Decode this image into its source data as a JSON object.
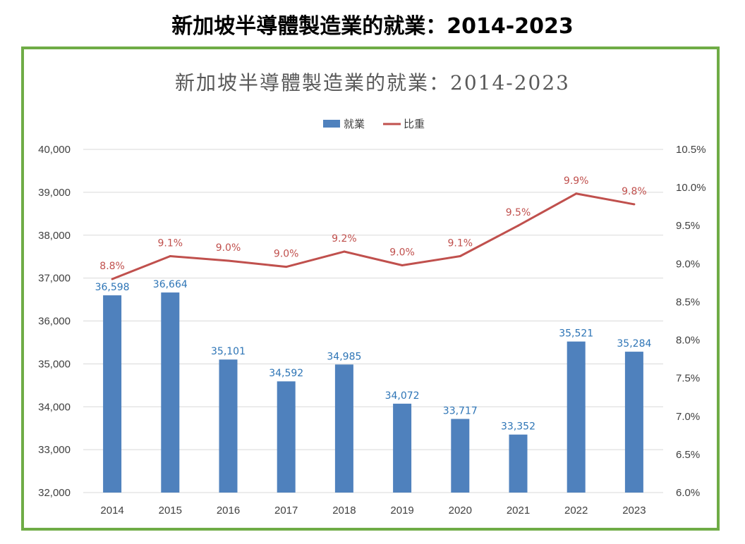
{
  "page": {
    "title": "新加坡半導體製造業的就業：2014-2023"
  },
  "colors": {
    "bar": "#4f81bd",
    "line": "#c0504d",
    "bar_label": "#2e75b6",
    "frame": "#6fac46",
    "grid": "#d9d9d9"
  },
  "chart_data": {
    "type": "bar",
    "title": "新加坡半導體製造業的就業：2014-2023",
    "categories": [
      "2014",
      "2015",
      "2016",
      "2017",
      "2018",
      "2019",
      "2020",
      "2021",
      "2022",
      "2023"
    ],
    "series": [
      {
        "name": "就業",
        "type": "bar",
        "axis": "left",
        "values": [
          36598,
          36664,
          35101,
          34592,
          34985,
          34072,
          33717,
          33352,
          35521,
          35284
        ],
        "labels": [
          "36,598",
          "36,664",
          "35,101",
          "34,592",
          "34,985",
          "34,072",
          "33,717",
          "33,352",
          "35,521",
          "35,284"
        ]
      },
      {
        "name": "比重",
        "type": "line",
        "axis": "right",
        "values": [
          8.8,
          9.1,
          9.04,
          8.96,
          9.16,
          8.98,
          9.1,
          9.5,
          9.92,
          9.78
        ],
        "labels": [
          "8.8%",
          "9.1%",
          "9.0%",
          "9.0%",
          "9.2%",
          "9.0%",
          "9.1%",
          "9.5%",
          "9.9%",
          "9.8%"
        ]
      }
    ],
    "y_left": {
      "lim": [
        32000,
        40000
      ],
      "ticks": [
        "32,000",
        "33,000",
        "34,000",
        "35,000",
        "36,000",
        "37,000",
        "38,000",
        "39,000",
        "40,000"
      ]
    },
    "y_right": {
      "lim": [
        6.0,
        10.5
      ],
      "ticks": [
        "6.0%",
        "6.5%",
        "7.0%",
        "7.5%",
        "8.0%",
        "8.5%",
        "9.0%",
        "9.5%",
        "10.0%",
        "10.5%"
      ]
    },
    "grid": true,
    "legend_position": "top-center"
  }
}
